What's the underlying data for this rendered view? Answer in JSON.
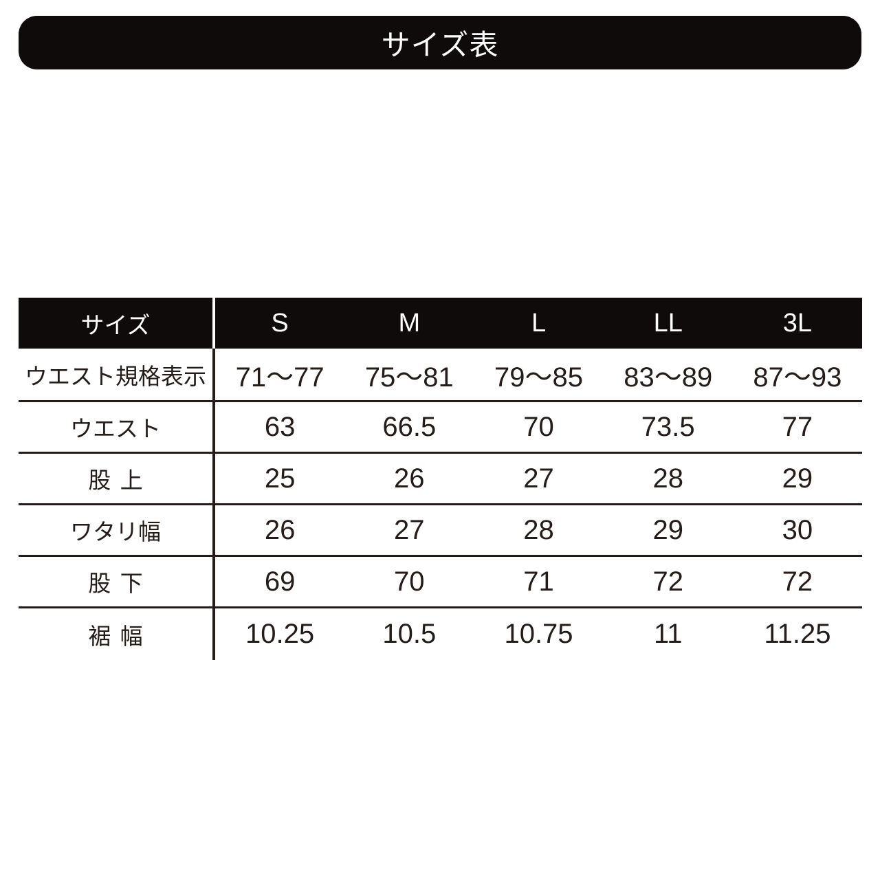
{
  "colors": {
    "background": "#ffffff",
    "title_bar_bg": "#0f0b0b",
    "table_header_bg": "#0f0b0b",
    "table_header_text": "#ffffff",
    "ink": "#241c18"
  },
  "chart_data": {
    "type": "table",
    "title": "サイズ表",
    "columns": [
      "サイズ",
      "S",
      "M",
      "L",
      "LL",
      "3L"
    ],
    "rows": [
      {
        "label": "ウエスト規格表示",
        "values": [
          "71〜77",
          "75〜81",
          "79〜85",
          "83〜89",
          "87〜93"
        ]
      },
      {
        "label": "ウエスト",
        "values": [
          "63",
          "66.5",
          "70",
          "73.5",
          "77"
        ]
      },
      {
        "label": "股上",
        "values": [
          "25",
          "26",
          "27",
          "28",
          "29"
        ]
      },
      {
        "label": "ワタリ幅",
        "values": [
          "26",
          "27",
          "28",
          "29",
          "30"
        ]
      },
      {
        "label": "股下",
        "values": [
          "69",
          "70",
          "71",
          "72",
          "72"
        ]
      },
      {
        "label": "裾幅",
        "values": [
          "10.25",
          "10.5",
          "10.75",
          "11",
          "11.25"
        ]
      }
    ]
  }
}
